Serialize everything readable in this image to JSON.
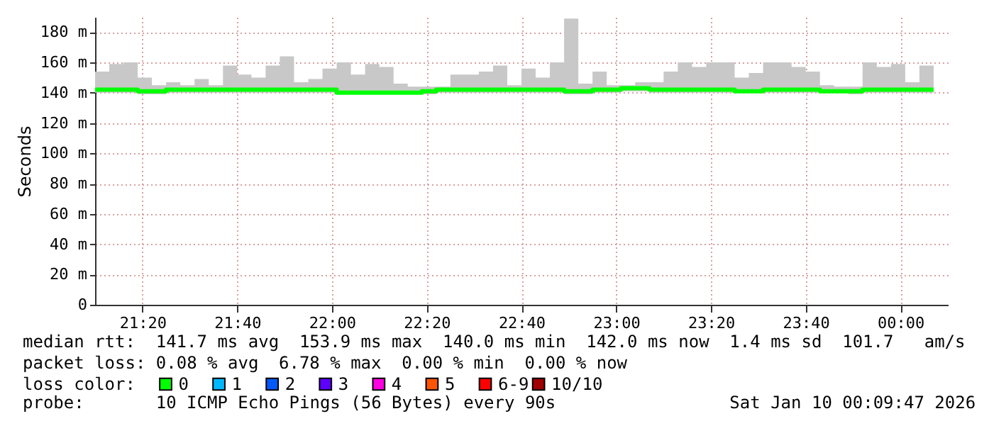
{
  "chart_data": {
    "type": "step",
    "ylabel": "Seconds",
    "legend_title": "loss color:",
    "x": [
      "2026-01-09T21:10",
      "2026-01-09T21:13",
      "2026-01-09T21:16",
      "2026-01-09T21:19",
      "2026-01-09T21:22",
      "2026-01-09T21:25",
      "2026-01-09T21:28",
      "2026-01-09T21:31",
      "2026-01-09T21:34",
      "2026-01-09T21:37",
      "2026-01-09T21:40",
      "2026-01-09T21:43",
      "2026-01-09T21:46",
      "2026-01-09T21:49",
      "2026-01-09T21:52",
      "2026-01-09T21:55",
      "2026-01-09T21:58",
      "2026-01-09T22:01",
      "2026-01-09T22:04",
      "2026-01-09T22:07",
      "2026-01-09T22:10",
      "2026-01-09T22:13",
      "2026-01-09T22:16",
      "2026-01-09T22:19",
      "2026-01-09T22:22",
      "2026-01-09T22:25",
      "2026-01-09T22:28",
      "2026-01-09T22:31",
      "2026-01-09T22:34",
      "2026-01-09T22:37",
      "2026-01-09T22:40",
      "2026-01-09T22:43",
      "2026-01-09T22:46",
      "2026-01-09T22:49",
      "2026-01-09T22:52",
      "2026-01-09T22:55",
      "2026-01-09T22:58",
      "2026-01-09T23:01",
      "2026-01-09T23:04",
      "2026-01-09T23:07",
      "2026-01-09T23:10",
      "2026-01-09T23:13",
      "2026-01-09T23:16",
      "2026-01-09T23:19",
      "2026-01-09T23:22",
      "2026-01-09T23:25",
      "2026-01-09T23:28",
      "2026-01-09T23:31",
      "2026-01-09T23:34",
      "2026-01-09T23:37",
      "2026-01-09T23:40",
      "2026-01-09T23:43",
      "2026-01-09T23:46",
      "2026-01-09T23:49",
      "2026-01-09T23:52",
      "2026-01-09T23:55",
      "2026-01-09T23:58",
      "2026-01-10T00:01",
      "2026-01-10T00:04",
      "2026-01-10T00:07"
    ],
    "series": [
      {
        "name": "0",
        "color": "#00ff00",
        "values": [
          142,
          142,
          142,
          141,
          141,
          142,
          142,
          142,
          142,
          142,
          142,
          142,
          142,
          142,
          142,
          142,
          142,
          140,
          140,
          140,
          140,
          140,
          140,
          141,
          142,
          142,
          142,
          142,
          142,
          142,
          142,
          142,
          142,
          141,
          141,
          142,
          142,
          143,
          143,
          142,
          142,
          142,
          142,
          142,
          142,
          141,
          141,
          142,
          142,
          142,
          142,
          141,
          141,
          141,
          142,
          142,
          142,
          142,
          142,
          142
        ],
        "lower": [
          140,
          140,
          140,
          139,
          139,
          140,
          140,
          140,
          140,
          140,
          140,
          140,
          140,
          140,
          140,
          140,
          140,
          139,
          139,
          139,
          139,
          139,
          139,
          139,
          140,
          140,
          140,
          140,
          140,
          140,
          140,
          140,
          140,
          139,
          139,
          140,
          140,
          141,
          141,
          140,
          140,
          140,
          140,
          140,
          140,
          140,
          140,
          140,
          140,
          140,
          140,
          140,
          140,
          139,
          140,
          140,
          140,
          140,
          140,
          140
        ],
        "upper": [
          154,
          159,
          160,
          150,
          145,
          147,
          145,
          149,
          145,
          158,
          152,
          150,
          158,
          164,
          147,
          149,
          156,
          160,
          152,
          159,
          157,
          146,
          144,
          144,
          144,
          152,
          152,
          154,
          158,
          145,
          156,
          150,
          160,
          189,
          146,
          154,
          145,
          145,
          147,
          147,
          154,
          160,
          157,
          160,
          160,
          150,
          153,
          160,
          160,
          157,
          154,
          145,
          144,
          144,
          160,
          157,
          159,
          147,
          158,
          158
        ]
      },
      {
        "name": "1",
        "color": "#00b8ff",
        "values": [
          null,
          null,
          null,
          null,
          null,
          null,
          null,
          null,
          null,
          null,
          null,
          null,
          null,
          null,
          null,
          null,
          null,
          null,
          null,
          null,
          null,
          null,
          null,
          null,
          null,
          null,
          null,
          null,
          null,
          null,
          null,
          null,
          null,
          null,
          null,
          null,
          null,
          null,
          null,
          null,
          null,
          null,
          null,
          null,
          null,
          null,
          null,
          null,
          null,
          null,
          null,
          null,
          null,
          null,
          null,
          null,
          null,
          null,
          null,
          null
        ]
      },
      {
        "name": "2",
        "color": "#0059ff",
        "values": [
          null,
          null,
          null,
          null,
          null,
          null,
          null,
          null,
          null,
          null,
          null,
          null,
          null,
          null,
          null,
          null,
          null,
          null,
          null,
          null,
          null,
          null,
          null,
          null,
          null,
          null,
          null,
          null,
          null,
          null,
          null,
          null,
          null,
          null,
          null,
          null,
          null,
          null,
          null,
          null,
          null,
          null,
          null,
          null,
          null,
          null,
          null,
          null,
          null,
          null,
          null,
          null,
          null,
          null,
          null,
          null,
          null,
          null,
          null,
          null
        ]
      },
      {
        "name": "3",
        "color": "#5e00ff",
        "values": [
          null,
          null,
          null,
          null,
          null,
          null,
          null,
          null,
          null,
          null,
          null,
          null,
          null,
          null,
          null,
          null,
          null,
          null,
          null,
          null,
          null,
          null,
          null,
          null,
          null,
          null,
          null,
          null,
          null,
          null,
          null,
          null,
          null,
          null,
          null,
          null,
          null,
          null,
          null,
          null,
          null,
          null,
          null,
          null,
          null,
          null,
          null,
          null,
          null,
          null,
          null,
          null,
          null,
          null,
          null,
          null,
          null,
          null,
          null,
          null
        ]
      },
      {
        "name": "4",
        "color": "#ff00e0",
        "values": [
          null,
          null,
          null,
          null,
          null,
          null,
          null,
          null,
          null,
          null,
          null,
          null,
          null,
          null,
          null,
          null,
          null,
          null,
          null,
          null,
          null,
          null,
          null,
          null,
          null,
          null,
          null,
          null,
          null,
          null,
          null,
          null,
          null,
          null,
          null,
          null,
          null,
          null,
          null,
          null,
          null,
          null,
          null,
          null,
          null,
          null,
          null,
          null,
          null,
          null,
          null,
          null,
          null,
          null,
          null,
          null,
          null,
          null,
          null,
          null
        ]
      },
      {
        "name": "5",
        "color": "#ff5500",
        "values": [
          null,
          null,
          null,
          null,
          null,
          null,
          null,
          null,
          null,
          null,
          null,
          null,
          null,
          null,
          null,
          null,
          null,
          null,
          null,
          null,
          null,
          null,
          null,
          null,
          null,
          null,
          null,
          null,
          null,
          null,
          null,
          null,
          null,
          null,
          null,
          null,
          null,
          null,
          null,
          null,
          null,
          null,
          null,
          null,
          null,
          null,
          null,
          null,
          null,
          null,
          null,
          null,
          null,
          null,
          null,
          null,
          null,
          null,
          null,
          null
        ]
      },
      {
        "name": "6-9",
        "color": "#ff0000",
        "values": [
          null,
          null,
          null,
          null,
          null,
          null,
          null,
          null,
          null,
          null,
          null,
          null,
          null,
          null,
          null,
          null,
          null,
          null,
          null,
          null,
          null,
          null,
          null,
          null,
          null,
          null,
          null,
          null,
          null,
          null,
          null,
          null,
          null,
          null,
          null,
          null,
          null,
          null,
          null,
          null,
          null,
          null,
          null,
          null,
          null,
          null,
          null,
          null,
          null,
          null,
          null,
          null,
          null,
          null,
          null,
          null,
          null,
          null,
          null,
          null
        ]
      },
      {
        "name": "10/10",
        "color": "#a10000",
        "values": [
          null,
          null,
          null,
          null,
          null,
          null,
          null,
          null,
          null,
          null,
          null,
          null,
          null,
          null,
          null,
          null,
          null,
          null,
          null,
          null,
          null,
          null,
          null,
          null,
          null,
          null,
          null,
          null,
          null,
          null,
          null,
          null,
          null,
          null,
          null,
          null,
          null,
          null,
          null,
          null,
          null,
          null,
          null,
          null,
          null,
          null,
          null,
          null,
          null,
          null,
          null,
          null,
          null,
          null,
          null,
          null,
          null,
          null,
          null,
          null
        ]
      }
    ],
    "xlim": [
      "2026-01-09T21:10",
      "2026-01-10T00:10"
    ],
    "xticks": [
      {
        "value": "2026-01-09T21:20",
        "label": "21:20"
      },
      {
        "value": "2026-01-09T21:40",
        "label": "21:40"
      },
      {
        "value": "2026-01-09T22:00",
        "label": "22:00"
      },
      {
        "value": "2026-01-09T22:20",
        "label": "22:20"
      },
      {
        "value": "2026-01-09T22:40",
        "label": "22:40"
      },
      {
        "value": "2026-01-09T23:00",
        "label": "23:00"
      },
      {
        "value": "2026-01-09T23:20",
        "label": "23:20"
      },
      {
        "value": "2026-01-09T23:40",
        "label": "23:40"
      },
      {
        "value": "2026-01-10T00:00",
        "label": "00:00"
      }
    ],
    "ylim": [
      0,
      190
    ],
    "yticks": [
      0,
      {
        "value": 20,
        "label": "20 m"
      },
      {
        "value": 40,
        "label": "40 m"
      },
      {
        "value": 60,
        "label": "60 m"
      },
      {
        "value": 80,
        "label": "80 m"
      },
      {
        "value": 100,
        "label": "100 m"
      },
      {
        "value": 120,
        "label": "120 m"
      },
      {
        "value": 140,
        "label": "140 m"
      },
      {
        "value": 160,
        "label": "160 m"
      },
      {
        "value": 180,
        "label": "180 m"
      }
    ],
    "grid": true,
    "legend": "bottom left",
    "annotations": [
      "median rtt:  141.7 ms avg  153.9 ms max  140.0 ms min  142.0 ms now  1.4 ms sd  101.7   am/s",
      "packet loss: 0.08 % avg  6.78 % max  0.00 % min  0.00 % now",
      "probe:       10 ICMP Echo Pings (56 Bytes) every 90s                 Sat Jan 10 00:09:47 2026"
    ]
  }
}
